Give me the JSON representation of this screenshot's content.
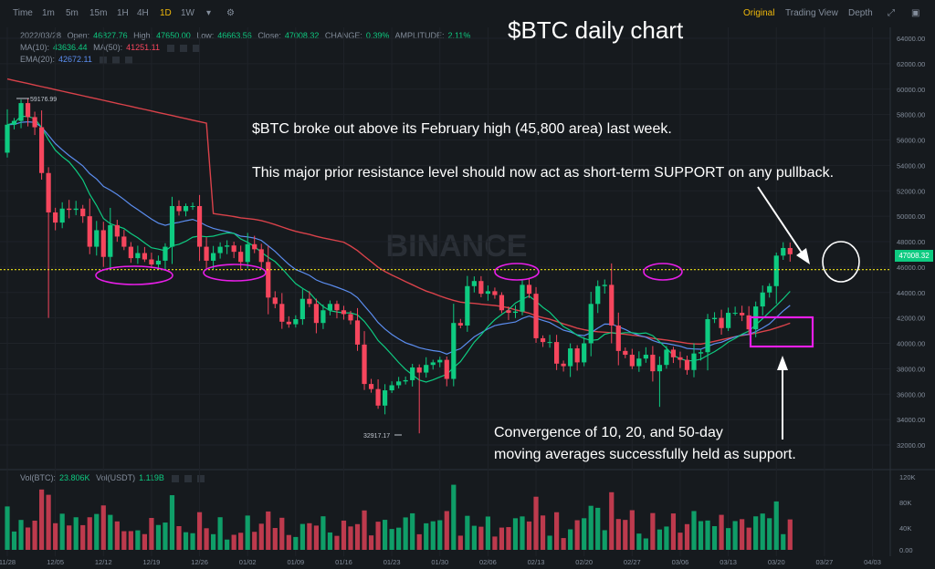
{
  "toolbar": {
    "intervals": [
      "Time",
      "1m",
      "5m",
      "15m",
      "1H",
      "4H",
      "1D",
      "1W"
    ],
    "active": "1D",
    "views": [
      "Original",
      "Trading View",
      "Depth"
    ],
    "active_view": "Original"
  },
  "legend": {
    "date": "2022/03/28",
    "open_label": "Open:",
    "open": "46827.76",
    "high_label": "High:",
    "high": "47650.00",
    "low_label": "Low:",
    "low": "46663.56",
    "close_label": "Close:",
    "close": "47008.32",
    "change_label": "CHANGE:",
    "change": "0.39%",
    "amp_label": "AMPLITUDE:",
    "amp": "2.11%",
    "ma10_label": "MA(10):",
    "ma10": "43636.44",
    "ma50_label": "MA(50):",
    "ma50": "41251.11",
    "ema_label": "EMA(20):",
    "ema": "42672.11",
    "vol_btc_label": "Vol(BTC):",
    "vol_btc": "23.806K",
    "vol_usdt_label": "Vol(USDT)",
    "vol_usdt": "1.119B"
  },
  "annotations": {
    "title": "$BTC daily chart",
    "text1": "$BTC broke out above its February high (45,800 area) last week.",
    "text2": "This major prior resistance level should now act as short-term SUPPORT on any pullback.",
    "text3_line1": "Convergence of 10, 20, and 50-day",
    "text3_line2": "moving averages successfully held as support.",
    "watermark": "BINANCE",
    "high_marker": "59176.99",
    "low_marker": "32917.17",
    "last_price": "47008.32"
  },
  "colors": {
    "up": "#0ecb81",
    "down": "#f6465d",
    "ma10": "#0ecb81",
    "ema20": "#5b8def",
    "ma50": "#d9424a",
    "support_line": "#f0e31a",
    "highlight": "#e81ee8"
  },
  "chart_data": {
    "type": "candlestick",
    "price_ticks": [
      "64000.00",
      "62000.00",
      "60000.00",
      "58000.00",
      "56000.00",
      "54000.00",
      "52000.00",
      "50000.00",
      "48000.00",
      "46000.00",
      "44000.00",
      "42000.00",
      "40000.00",
      "38000.00",
      "36000.00",
      "34000.00",
      "32000.00"
    ],
    "volume_ticks": [
      "120K",
      "80K",
      "40K",
      "0.00"
    ],
    "x_labels": [
      "11/28",
      "12/05",
      "12/12",
      "12/19",
      "12/26",
      "01/02",
      "01/09",
      "01/16",
      "01/23",
      "01/30",
      "02/06",
      "02/13",
      "02/20",
      "02/27",
      "03/06",
      "03/13",
      "03/20",
      "03/27",
      "04/03"
    ],
    "support_level": 45800,
    "closes": [
      57200,
      57500,
      58900,
      57800,
      57000,
      53400,
      50300,
      49500,
      50600,
      50500,
      50600,
      50000,
      47600,
      48900,
      46800,
      49300,
      48400,
      47600,
      46700,
      47100,
      46600,
      46200,
      46500,
      47600,
      50800,
      50400,
      50800,
      50800,
      47600,
      46500,
      47100,
      47600,
      47700,
      47200,
      46400,
      47800,
      47400,
      46400,
      43600,
      43100,
      41700,
      41500,
      41900,
      43500,
      43100,
      41600,
      42600,
      43100,
      42600,
      42300,
      41800,
      39900,
      36800,
      36400,
      35100,
      36300,
      36700,
      37000,
      37100,
      38100,
      37700,
      38300,
      38500,
      38700,
      37200,
      41600,
      41400,
      44500,
      44900,
      43900,
      44100,
      43800,
      42600,
      42400,
      42500,
      44600,
      43900,
      40400,
      40100,
      40100,
      38400,
      38200,
      39600,
      38500,
      40000,
      43100,
      44500,
      44600,
      41400,
      39400,
      39100,
      38200,
      38800,
      39100,
      37800,
      38300,
      39500,
      38900,
      38700,
      37900,
      39200,
      39300,
      41900,
      42000,
      41200,
      42400,
      42400,
      42200,
      41100,
      42900,
      44000,
      44500,
      46900,
      47500,
      47008
    ]
  }
}
